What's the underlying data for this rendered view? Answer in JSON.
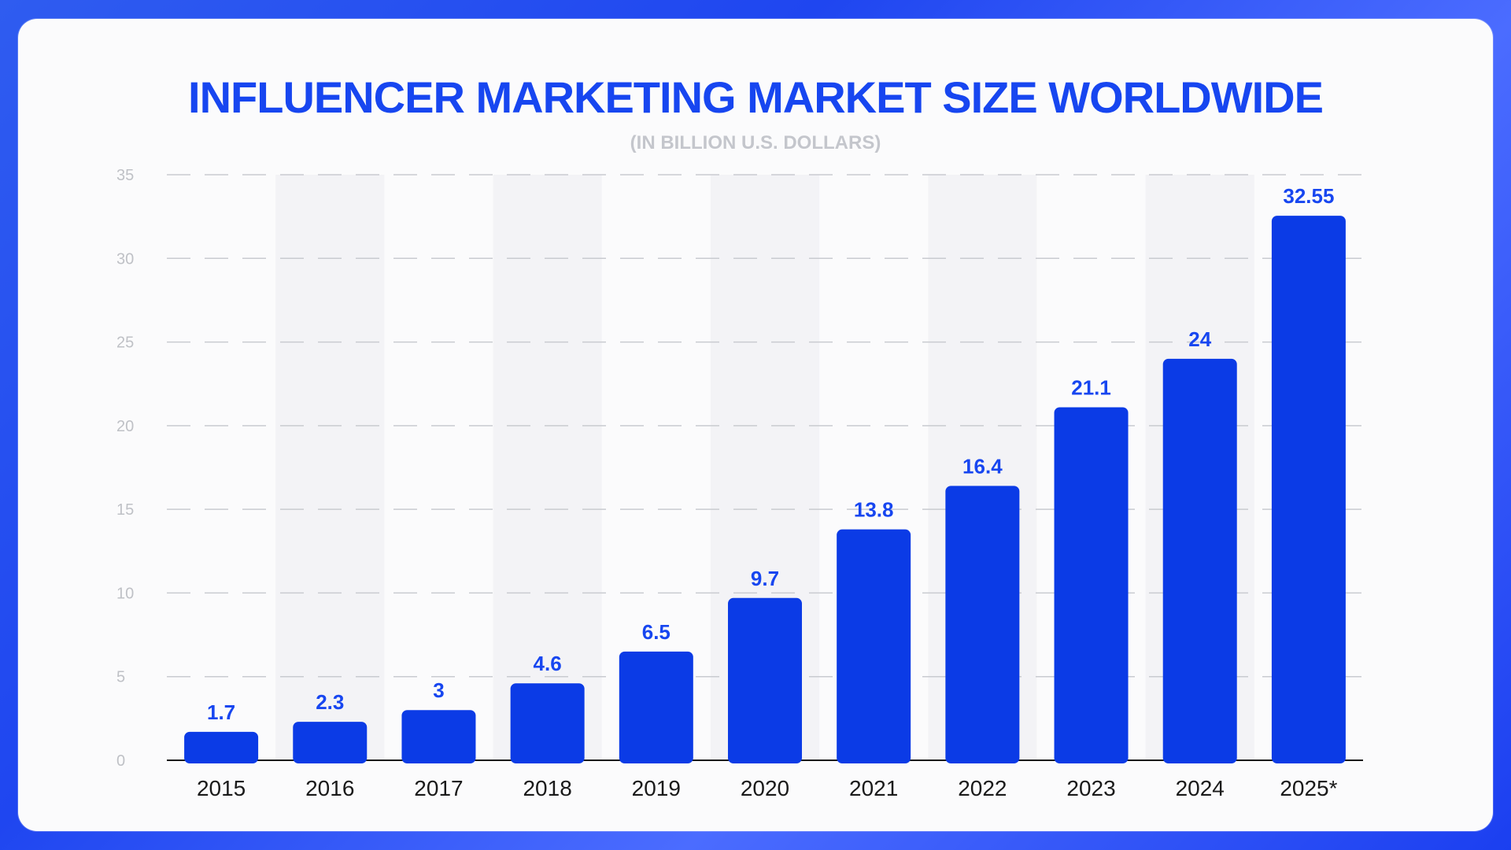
{
  "colors": {
    "accent": "#1746f0",
    "bar": "#0b3be6",
    "background_gradient": "#2f5cf0",
    "card": "#fbfbfc",
    "band": "#f3f3f6",
    "subtitle": "#c4c6cc"
  },
  "chart_data": {
    "type": "bar",
    "title": "INFLUENCER MARKETING MARKET SIZE WORLDWIDE",
    "subtitle": "(IN BILLION U.S. DOLLARS)",
    "xlabel": "",
    "ylabel": "",
    "categories": [
      "2015",
      "2016",
      "2017",
      "2018",
      "2019",
      "2020",
      "2021",
      "2022",
      "2023",
      "2024",
      "2025*"
    ],
    "values": [
      1.7,
      2.3,
      3,
      4.6,
      6.5,
      9.7,
      13.8,
      16.4,
      21.1,
      24,
      32.55
    ],
    "data_labels": [
      "1.7",
      "2.3",
      "3",
      "4.6",
      "6.5",
      "9.7",
      "13.8",
      "16.4",
      "21.1",
      "24",
      "32.55"
    ],
    "ylim": [
      0,
      35
    ],
    "yticks": [
      "0",
      "5",
      "10",
      "15",
      "20",
      "25",
      "30",
      "35"
    ],
    "grid": true,
    "legend": "none"
  }
}
